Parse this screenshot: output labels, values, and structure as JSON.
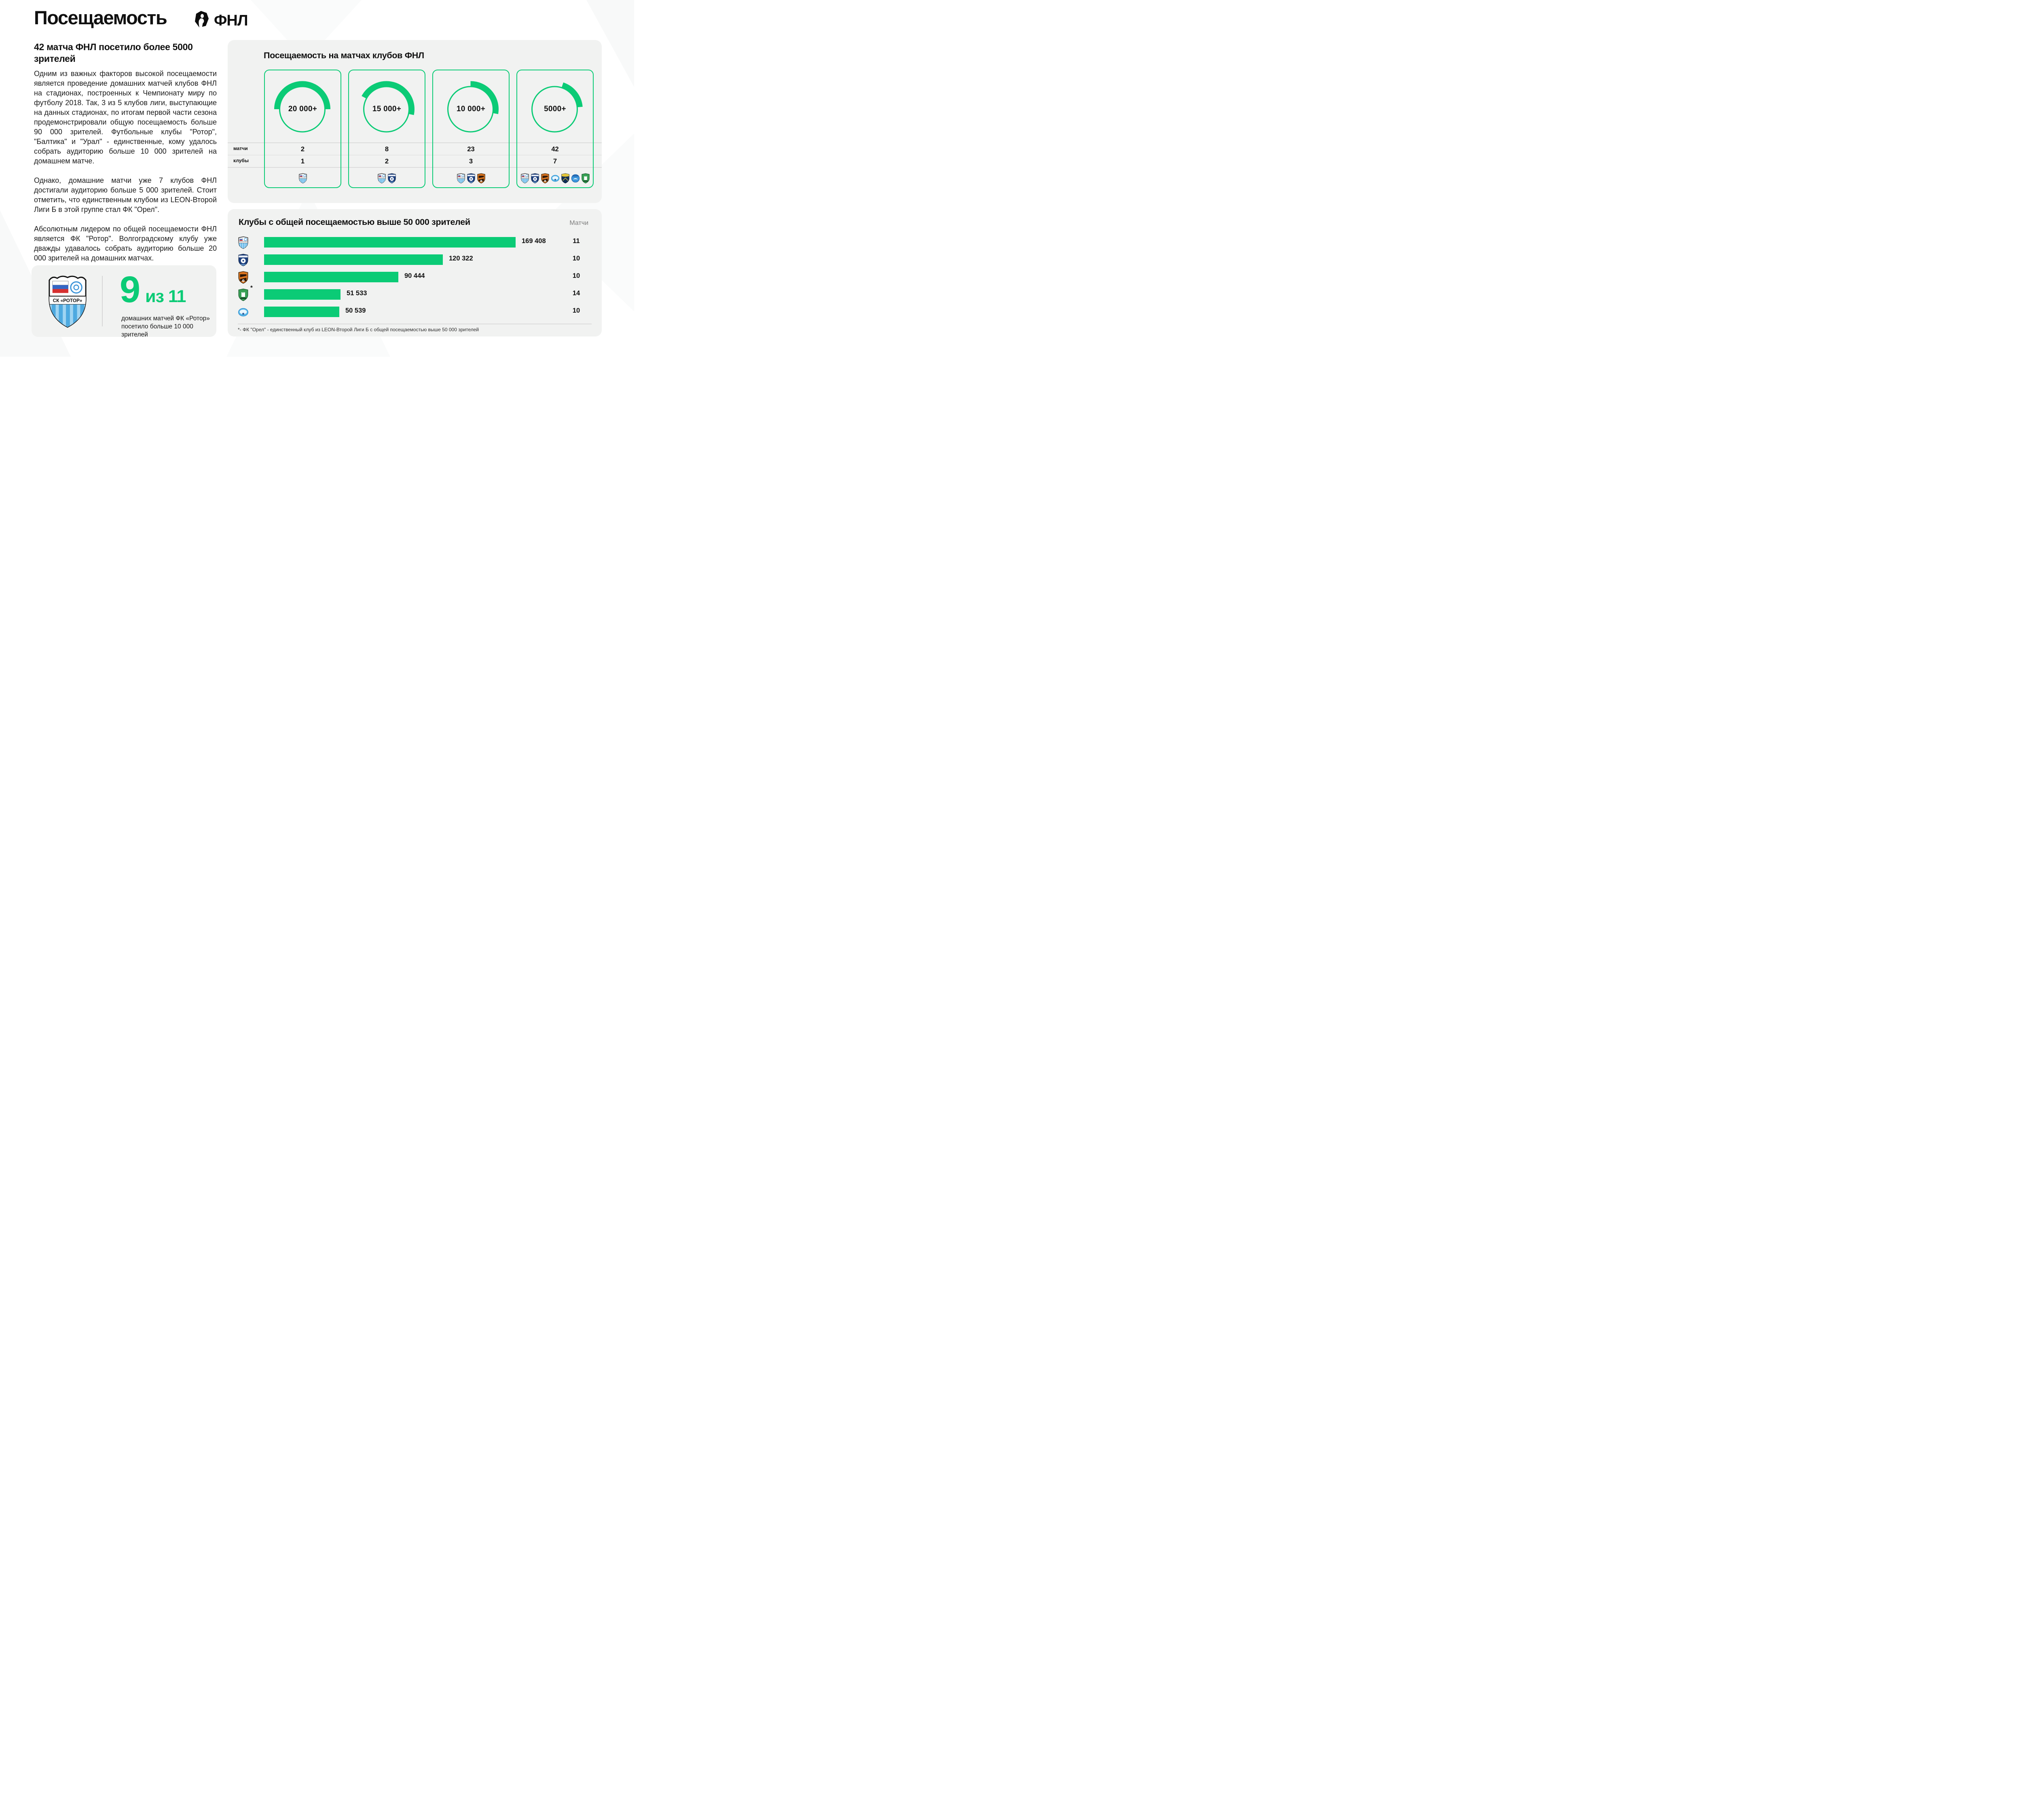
{
  "page": {
    "title": "Посещаемость",
    "brand": "ФНЛ"
  },
  "colors": {
    "green": "#0bcb76",
    "panel_bg": "#f1f2f1",
    "divider": "#dcdcdc",
    "muted_header": "#7c7c7c"
  },
  "intro": {
    "heading": "42 матча ФНЛ посетило более 5000 зрителей",
    "paragraphs": [
      "Одним из важных факторов высокой посещаемости является проведение домашних матчей клубов ФНЛ на стадионах, построенных к Чемпионату миру по футболу 2018. Так, 3 из 5 клубов лиги, выступающие на данных стадионах, по итогам первой части сезона продемонстрировали общую посещаемость больше 90 000 зрителей. Футбольные клубы \"Ротор\", \"Балтика\" и \"Урал\" - единственные, кому удалось собрать аудиторию больше 10 000 зрителей на домашнем матче.",
      "Однако, домашние матчи уже 7 клубов ФНЛ достигали аудиторию больше 5 000 зрителей. Стоит отметить, что единственным клубом из LEON-Второй Лиги Б в этой группе стал ФК \"Орел\".",
      "Абсолютным лидером по общей посещаемости ФНЛ является ФК \"Ротор\". Волгоградскому клубу уже дважды удавалось собрать аудиторию больше 20 000 зрителей на домашних матчах."
    ]
  },
  "rotor_highlight": {
    "big_number": "9",
    "suffix": "из 11",
    "caption": "домашних матчей ФК «Ротор» посетило больше 10 000 зрителей",
    "logo_text": "СК «РОТОР»"
  },
  "tiers_panel": {
    "title": "Посещаемость на матчах клубов ФНЛ",
    "row_labels": {
      "matches": "матчи",
      "clubs": "клубы"
    },
    "tiers": [
      {
        "label": "20 000+",
        "matches": "2",
        "clubs": "1",
        "arc_start_deg": 180,
        "arc_end_deg": 0,
        "logos": [
          "rotor"
        ]
      },
      {
        "label": "15 000+",
        "matches": "8",
        "clubs": "2",
        "arc_start_deg": 152,
        "arc_end_deg": -12,
        "logos": [
          "rotor",
          "baltika"
        ]
      },
      {
        "label": "10 000+",
        "matches": "23",
        "clubs": "3",
        "arc_start_deg": 90,
        "arc_end_deg": -10,
        "logos": [
          "rotor",
          "baltika",
          "ural"
        ]
      },
      {
        "label": "5000+",
        "matches": "42",
        "clubs": "7",
        "arc_start_deg": 72,
        "arc_end_deg": 5,
        "logos": [
          "rotor",
          "baltika",
          "ural",
          "chernomorets",
          "sochi",
          "sokol",
          "orel"
        ]
      }
    ]
  },
  "bars_panel": {
    "title": "Клубы с общей посещаемостью выше 50 000 зрителей",
    "matches_header": "Матчи",
    "max_value": 169408,
    "rows": [
      {
        "club": "rotor",
        "club_name": "Ротор",
        "value": 169408,
        "value_label": "169 408",
        "matches": "11"
      },
      {
        "club": "baltika",
        "club_name": "Балтика",
        "value": 120322,
        "value_label": "120 322",
        "matches": "10"
      },
      {
        "club": "ural",
        "club_name": "Урал",
        "value": 90444,
        "value_label": "90 444",
        "matches": "10"
      },
      {
        "club": "orel",
        "club_name": "Орел",
        "value": 51533,
        "value_label": "51 533",
        "matches": "14",
        "note_mark": "*"
      },
      {
        "club": "chernomorets",
        "club_name": "Черноморец",
        "value": 50539,
        "value_label": "50 539",
        "matches": "10"
      }
    ],
    "footnote": "*- ФК \"Орел\" - единственный клуб из LEON-Второй Лиги Б с общей посещаемостью выше 50 000 зрителей"
  },
  "club_badges": {
    "rotor": {
      "body": "#ffffff",
      "stripe": "#56b1e6",
      "stripe_bg": "#cfeafc",
      "flag_blue": "#3566c4",
      "flag_red": "#d63030",
      "emblem": "#4aa0dc",
      "outline": "#1a1a1a"
    },
    "baltika": {
      "body": "#1c3f7e",
      "band": "#e8eef7",
      "ball": "#ffffff",
      "wave": "#7fb3e0",
      "outline": "#12284f"
    },
    "ural": {
      "body": "#d8731f",
      "center": "#2b1708",
      "ball": "#ffffff",
      "outline": "#3a230a"
    },
    "chernomorets": {
      "body": "#58b8e8",
      "center": "#eaf6fd",
      "ball": "#2f5f9e",
      "outline": "#2f8fd0"
    },
    "sochi": {
      "body": "#122f57",
      "accent": "#e3c53a",
      "outline": "#0a1e3a"
    },
    "sokol": {
      "body": "#3d97dc",
      "band": "#1f5fa8",
      "bird": "#ffffff",
      "outline": "#1f5fa8"
    },
    "orel": {
      "body": "#37a054",
      "castle": "#ffffff",
      "base": "#123b1f",
      "outline": "#1c5c30"
    }
  },
  "chart_data": [
    {
      "type": "table",
      "title": "Посещаемость на матчах клубов ФНЛ",
      "columns": [
        "20 000+",
        "15 000+",
        "10 000+",
        "5000+"
      ],
      "rows": {
        "матчи": [
          2,
          8,
          23,
          42
        ],
        "клубы": [
          1,
          2,
          3,
          7
        ]
      },
      "gauge_fill_percent": [
        50,
        46,
        28,
        19
      ]
    },
    {
      "type": "bar",
      "orientation": "horizontal",
      "title": "Клубы с общей посещаемостью выше 50 000 зрителей",
      "categories": [
        "Ротор",
        "Балтика",
        "Урал",
        "Орел",
        "Черноморец"
      ],
      "values": [
        169408,
        120322,
        90444,
        51533,
        50539
      ],
      "series": [
        {
          "name": "Общая посещаемость",
          "values": [
            169408,
            120322,
            90444,
            51533,
            50539
          ]
        },
        {
          "name": "Матчи",
          "values": [
            11,
            10,
            10,
            14,
            10
          ]
        }
      ],
      "xlim": [
        0,
        169408
      ],
      "grid": false,
      "legend": false,
      "bar_color": "#0bcb76"
    }
  ]
}
